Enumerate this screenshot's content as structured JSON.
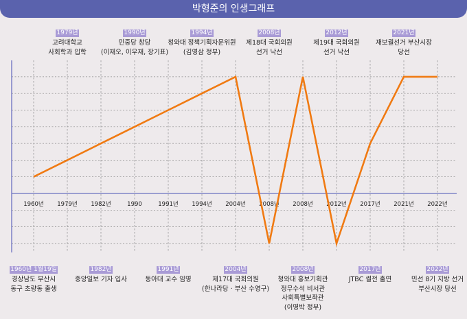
{
  "title": "박형준의 인생그래프",
  "colors": {
    "title_bar": "#5a62ad",
    "line": "#f07a12",
    "axis": "#6a70c0",
    "tag": "#a99bd6",
    "background": "#eeeaec"
  },
  "chart_data": {
    "type": "line",
    "title": "박형준의 인생그래프",
    "categories": [
      "1960년",
      "1979년",
      "1982년",
      "1990",
      "1991년",
      "1994년",
      "2004년",
      "2008년",
      "2008년",
      "2012년",
      "2017년",
      "2021년",
      "2022년"
    ],
    "values": [
      1,
      2,
      3,
      4,
      5,
      6,
      7,
      -3,
      7,
      -3,
      3,
      7,
      7
    ],
    "ylim": [
      -3.5,
      7.5
    ],
    "grid": true,
    "y_tick_labels_shown": false
  },
  "annotations_top": [
    {
      "index": 1,
      "tag": "1979년",
      "lines": [
        "고려대학교",
        "사회학과 입학"
      ]
    },
    {
      "index": 3,
      "tag": "1990년",
      "lines": [
        "민중당 창당",
        "(이재오, 이우재, 장기표)"
      ]
    },
    {
      "index": 5,
      "tag": "1994년",
      "lines": [
        "청와대 정책기획자문위원",
        "(김영삼 정부)"
      ]
    },
    {
      "index": 7,
      "tag": "2008년",
      "lines": [
        "제18대 국회의원",
        "선거 낙선"
      ]
    },
    {
      "index": 9,
      "tag": "2012년",
      "lines": [
        "제19대 국회의원",
        "선거 낙선"
      ]
    },
    {
      "index": 11,
      "tag": "2021년",
      "lines": [
        "재보궐선거 부산시장",
        "당선"
      ]
    }
  ],
  "annotations_bottom": [
    {
      "index": 0,
      "tag": "1960년 1월19일",
      "lines": [
        "경상남도 부산시",
        "동구 초량동 출생"
      ]
    },
    {
      "index": 2,
      "tag": "1982년",
      "lines": [
        "중앙일보 기자 입사"
      ]
    },
    {
      "index": 4,
      "tag": "1991년",
      "lines": [
        "동아대 교수 임명"
      ]
    },
    {
      "index": 6,
      "tag": "2004년",
      "lines": [
        "제17대 국회의원",
        "(한나라당 · 부산 수영구)"
      ]
    },
    {
      "index": 8,
      "tag": "2008년",
      "lines": [
        "청와대 홍보기획관",
        "정무수석 비서관",
        "사회특별보좌관",
        "(이명박 정부)"
      ]
    },
    {
      "index": 10,
      "tag": "2017년",
      "lines": [
        "JTBC 썰전 출연"
      ]
    },
    {
      "index": 12,
      "tag": "2022년",
      "lines": [
        "민선 8기 지방 선거",
        "부산시장 당선"
      ]
    }
  ]
}
